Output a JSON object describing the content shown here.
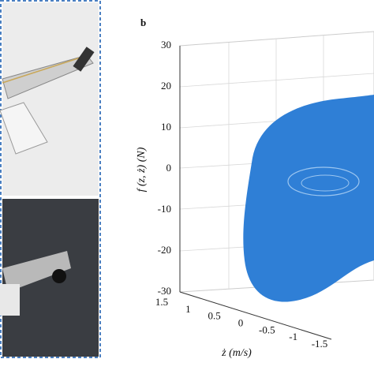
{
  "panel_b": {
    "label": "b",
    "vertical_axis": {
      "title": "f (z, ż) (N)",
      "ticks": [
        "30",
        "20",
        "10",
        "0",
        "-10",
        "-20",
        "-30"
      ]
    },
    "depth_axis": {
      "title": "ż (m/s)",
      "ticks": [
        "1.5",
        "1",
        "0.5",
        "0",
        "-0.5",
        "-1",
        "-1.5"
      ]
    }
  }
}
